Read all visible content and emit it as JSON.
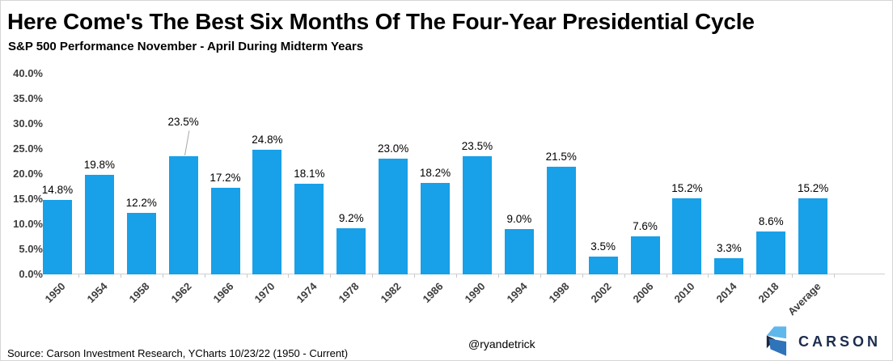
{
  "header": {
    "title": "Here Come's The Best Six Months Of The Four-Year Presidential Cycle",
    "subtitle": "S&P 500 Performance November - April During Midterm Years"
  },
  "chart_data": {
    "type": "bar",
    "categories": [
      "1950",
      "1954",
      "1958",
      "1962",
      "1966",
      "1970",
      "1974",
      "1978",
      "1982",
      "1986",
      "1990",
      "1994",
      "1998",
      "2002",
      "2006",
      "2010",
      "2014",
      "2018",
      "Average"
    ],
    "values": [
      14.8,
      19.8,
      12.2,
      23.5,
      17.2,
      24.8,
      18.1,
      9.2,
      23.0,
      18.2,
      23.5,
      9.0,
      21.5,
      3.5,
      7.6,
      15.2,
      3.3,
      8.6,
      15.2
    ],
    "title": "Here Come's The Best Six Months Of The Four-Year Presidential Cycle",
    "subtitle": "S&P 500 Performance November - April During Midterm Years",
    "xlabel": "",
    "ylabel": "",
    "ylim": [
      0,
      40
    ],
    "yticks": [
      0,
      5,
      10,
      15,
      20,
      25,
      30,
      35,
      40
    ],
    "ytick_suffix": "%",
    "data_label_suffix": "%",
    "grid": false,
    "legend": false,
    "raised_label_category": "1962",
    "bar_color": "#18a0e8"
  },
  "footer": {
    "source": "Source: Carson Investment Research, YCharts 10/23/22 (1950 - Current)",
    "handle": "@ryandetrick",
    "brand": "CARSON"
  },
  "colors": {
    "bar": "#18a0e8",
    "axis": "#cfcfcf",
    "tick_label": "#3d3d3d",
    "leader_line": "#a8a8a8",
    "brand_navy": "#1c2c4e",
    "brand_light_blue": "#5fb8ec",
    "brand_mid_blue": "#2f73bb"
  }
}
